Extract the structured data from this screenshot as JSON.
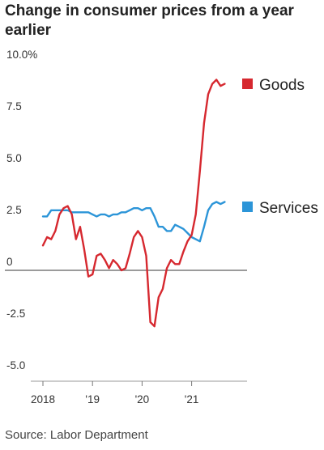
{
  "chart_data": {
    "type": "line",
    "title": "Change in consumer prices from a year earlier",
    "source": "Source: Labor Department",
    "y_ticks": [
      {
        "value": 10,
        "label": "10.0%"
      },
      {
        "value": 7.5,
        "label": "7.5"
      },
      {
        "value": 5,
        "label": "5.0"
      },
      {
        "value": 2.5,
        "label": "2.5"
      },
      {
        "value": 0,
        "label": "0"
      },
      {
        "value": -2.5,
        "label": "-2.5"
      },
      {
        "value": -5,
        "label": "-5.0"
      }
    ],
    "x_ticks": [
      {
        "value": "2018-01",
        "label": "2018"
      },
      {
        "value": "2019-01",
        "label": "'19"
      },
      {
        "value": "2020-01",
        "label": "'20"
      },
      {
        "value": "2021-01",
        "label": "'21"
      }
    ],
    "ylim": [
      -5,
      10
    ],
    "xlim": [
      "2018-01",
      "2021-09"
    ],
    "grid": false,
    "series": [
      {
        "name": "Goods",
        "color": "#d6282f",
        "dates": [
          "2018-01",
          "2018-02",
          "2018-03",
          "2018-04",
          "2018-05",
          "2018-06",
          "2018-07",
          "2018-08",
          "2018-09",
          "2018-10",
          "2018-11",
          "2018-12",
          "2019-01",
          "2019-02",
          "2019-03",
          "2019-04",
          "2019-05",
          "2019-06",
          "2019-07",
          "2019-08",
          "2019-09",
          "2019-10",
          "2019-11",
          "2019-12",
          "2020-01",
          "2020-02",
          "2020-03",
          "2020-04",
          "2020-05",
          "2020-06",
          "2020-07",
          "2020-08",
          "2020-09",
          "2020-10",
          "2020-11",
          "2020-12",
          "2021-01",
          "2021-02",
          "2021-03",
          "2021-04",
          "2021-05",
          "2021-06",
          "2021-07",
          "2021-08",
          "2021-09"
        ],
        "values": [
          1.2,
          1.6,
          1.5,
          1.9,
          2.7,
          3.0,
          3.1,
          2.7,
          1.5,
          2.1,
          1.0,
          -0.3,
          -0.2,
          0.7,
          0.8,
          0.5,
          0.1,
          0.5,
          0.3,
          0.0,
          0.1,
          0.8,
          1.6,
          1.9,
          1.6,
          0.7,
          -2.5,
          -2.7,
          -1.3,
          -0.9,
          0.1,
          0.5,
          0.3,
          0.3,
          0.9,
          1.4,
          1.7,
          2.7,
          4.8,
          7.1,
          8.5,
          9.0,
          9.2,
          8.9,
          9.0
        ]
      },
      {
        "name": "Services",
        "color": "#2c95d8",
        "dates": [
          "2018-01",
          "2018-02",
          "2018-03",
          "2018-04",
          "2018-05",
          "2018-06",
          "2018-07",
          "2018-08",
          "2018-09",
          "2018-10",
          "2018-11",
          "2018-12",
          "2019-01",
          "2019-02",
          "2019-03",
          "2019-04",
          "2019-05",
          "2019-06",
          "2019-07",
          "2019-08",
          "2019-09",
          "2019-10",
          "2019-11",
          "2019-12",
          "2020-01",
          "2020-02",
          "2020-03",
          "2020-04",
          "2020-05",
          "2020-06",
          "2020-07",
          "2020-08",
          "2020-09",
          "2020-10",
          "2020-11",
          "2020-12",
          "2021-01",
          "2021-02",
          "2021-03",
          "2021-04",
          "2021-05",
          "2021-06",
          "2021-07",
          "2021-08",
          "2021-09"
        ],
        "values": [
          2.6,
          2.6,
          2.9,
          2.9,
          2.9,
          2.9,
          2.9,
          2.8,
          2.8,
          2.8,
          2.8,
          2.8,
          2.7,
          2.6,
          2.7,
          2.7,
          2.6,
          2.7,
          2.7,
          2.8,
          2.8,
          2.9,
          3.0,
          3.0,
          2.9,
          3.0,
          3.0,
          2.6,
          2.1,
          2.1,
          1.9,
          1.9,
          2.2,
          2.1,
          2.0,
          1.8,
          1.6,
          1.5,
          1.4,
          2.1,
          2.9,
          3.2,
          3.3,
          3.2,
          3.3
        ]
      }
    ]
  }
}
